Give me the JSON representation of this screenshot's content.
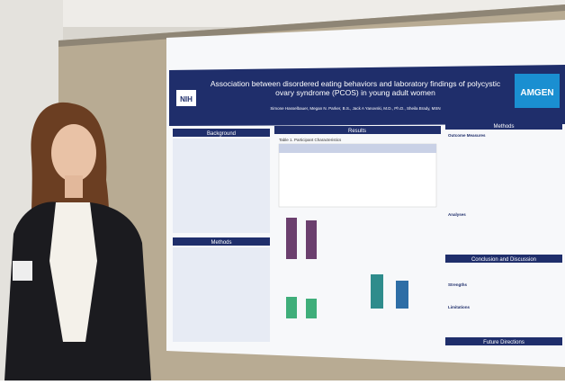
{
  "poster": {
    "logo_left": "NIH",
    "logo_right": "AMGEN",
    "title": "Association between disordered eating behaviors and laboratory findings of polycystic ovary syndrome (PCOS) in young adult women",
    "authors": "Simone Hasselbauer, Megan N. Parker, B.S., Jack A Yanovski, M.D., Ph.D., Sheila Brady, MSN",
    "sections": {
      "background": "Background",
      "methods_left": "Methods",
      "results": "Results",
      "methods_right": "Methods",
      "outcome": "Outcome Measures",
      "analyses": "Analyses",
      "conclusion": "Conclusion and Discussion",
      "strengths": "Strengths",
      "limitations": "Limitations",
      "future": "Future Directions"
    },
    "table_title": "Table 1. Participant Characteristics"
  }
}
